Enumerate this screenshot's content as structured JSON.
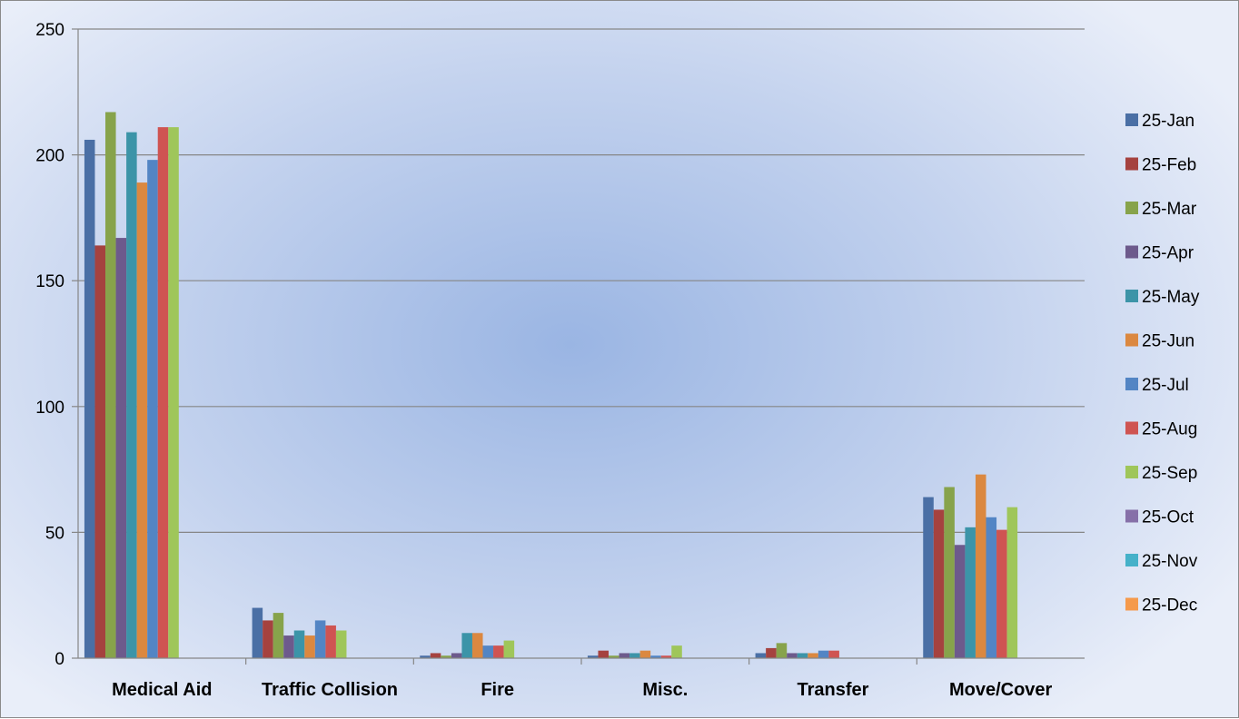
{
  "chart_data": {
    "type": "bar",
    "categories": [
      "Medical Aid",
      "Traffic Collision",
      "Fire",
      "Misc.",
      "Transfer",
      "Move/Cover"
    ],
    "ylim": [
      0,
      250
    ],
    "yticks": [
      0,
      50,
      100,
      150,
      200,
      250
    ],
    "grid": true,
    "legend_position": "right",
    "series": [
      {
        "name": "25-Jan",
        "color": "#4a6fa5",
        "values": [
          206,
          20,
          1,
          1,
          2,
          64
        ]
      },
      {
        "name": "25-Feb",
        "color": "#a5423f",
        "values": [
          164,
          15,
          2,
          3,
          4,
          59
        ]
      },
      {
        "name": "25-Mar",
        "color": "#87a34b",
        "values": [
          217,
          18,
          1,
          1,
          6,
          68
        ]
      },
      {
        "name": "25-Apr",
        "color": "#6d5a8c",
        "values": [
          167,
          9,
          2,
          2,
          2,
          45
        ]
      },
      {
        "name": "25-May",
        "color": "#3c94a8",
        "values": [
          209,
          11,
          10,
          2,
          2,
          52
        ]
      },
      {
        "name": "25-Jun",
        "color": "#db8840",
        "values": [
          189,
          9,
          10,
          3,
          2,
          73
        ]
      },
      {
        "name": "25-Jul",
        "color": "#5385c4",
        "values": [
          198,
          15,
          5,
          1,
          3,
          56
        ]
      },
      {
        "name": "25-Aug",
        "color": "#cf5452",
        "values": [
          211,
          13,
          5,
          1,
          3,
          51
        ]
      },
      {
        "name": "25-Sep",
        "color": "#9fc65a",
        "values": [
          211,
          11,
          7,
          5,
          0,
          60
        ]
      },
      {
        "name": "25-Oct",
        "color": "#8670a8",
        "values": [
          0,
          0,
          0,
          0,
          0,
          0
        ]
      },
      {
        "name": "25-Nov",
        "color": "#45b1c9",
        "values": [
          0,
          0,
          0,
          0,
          0,
          0
        ]
      },
      {
        "name": "25-Dec",
        "color": "#f59a4c",
        "values": [
          0,
          0,
          0,
          0,
          0,
          0
        ]
      }
    ]
  }
}
